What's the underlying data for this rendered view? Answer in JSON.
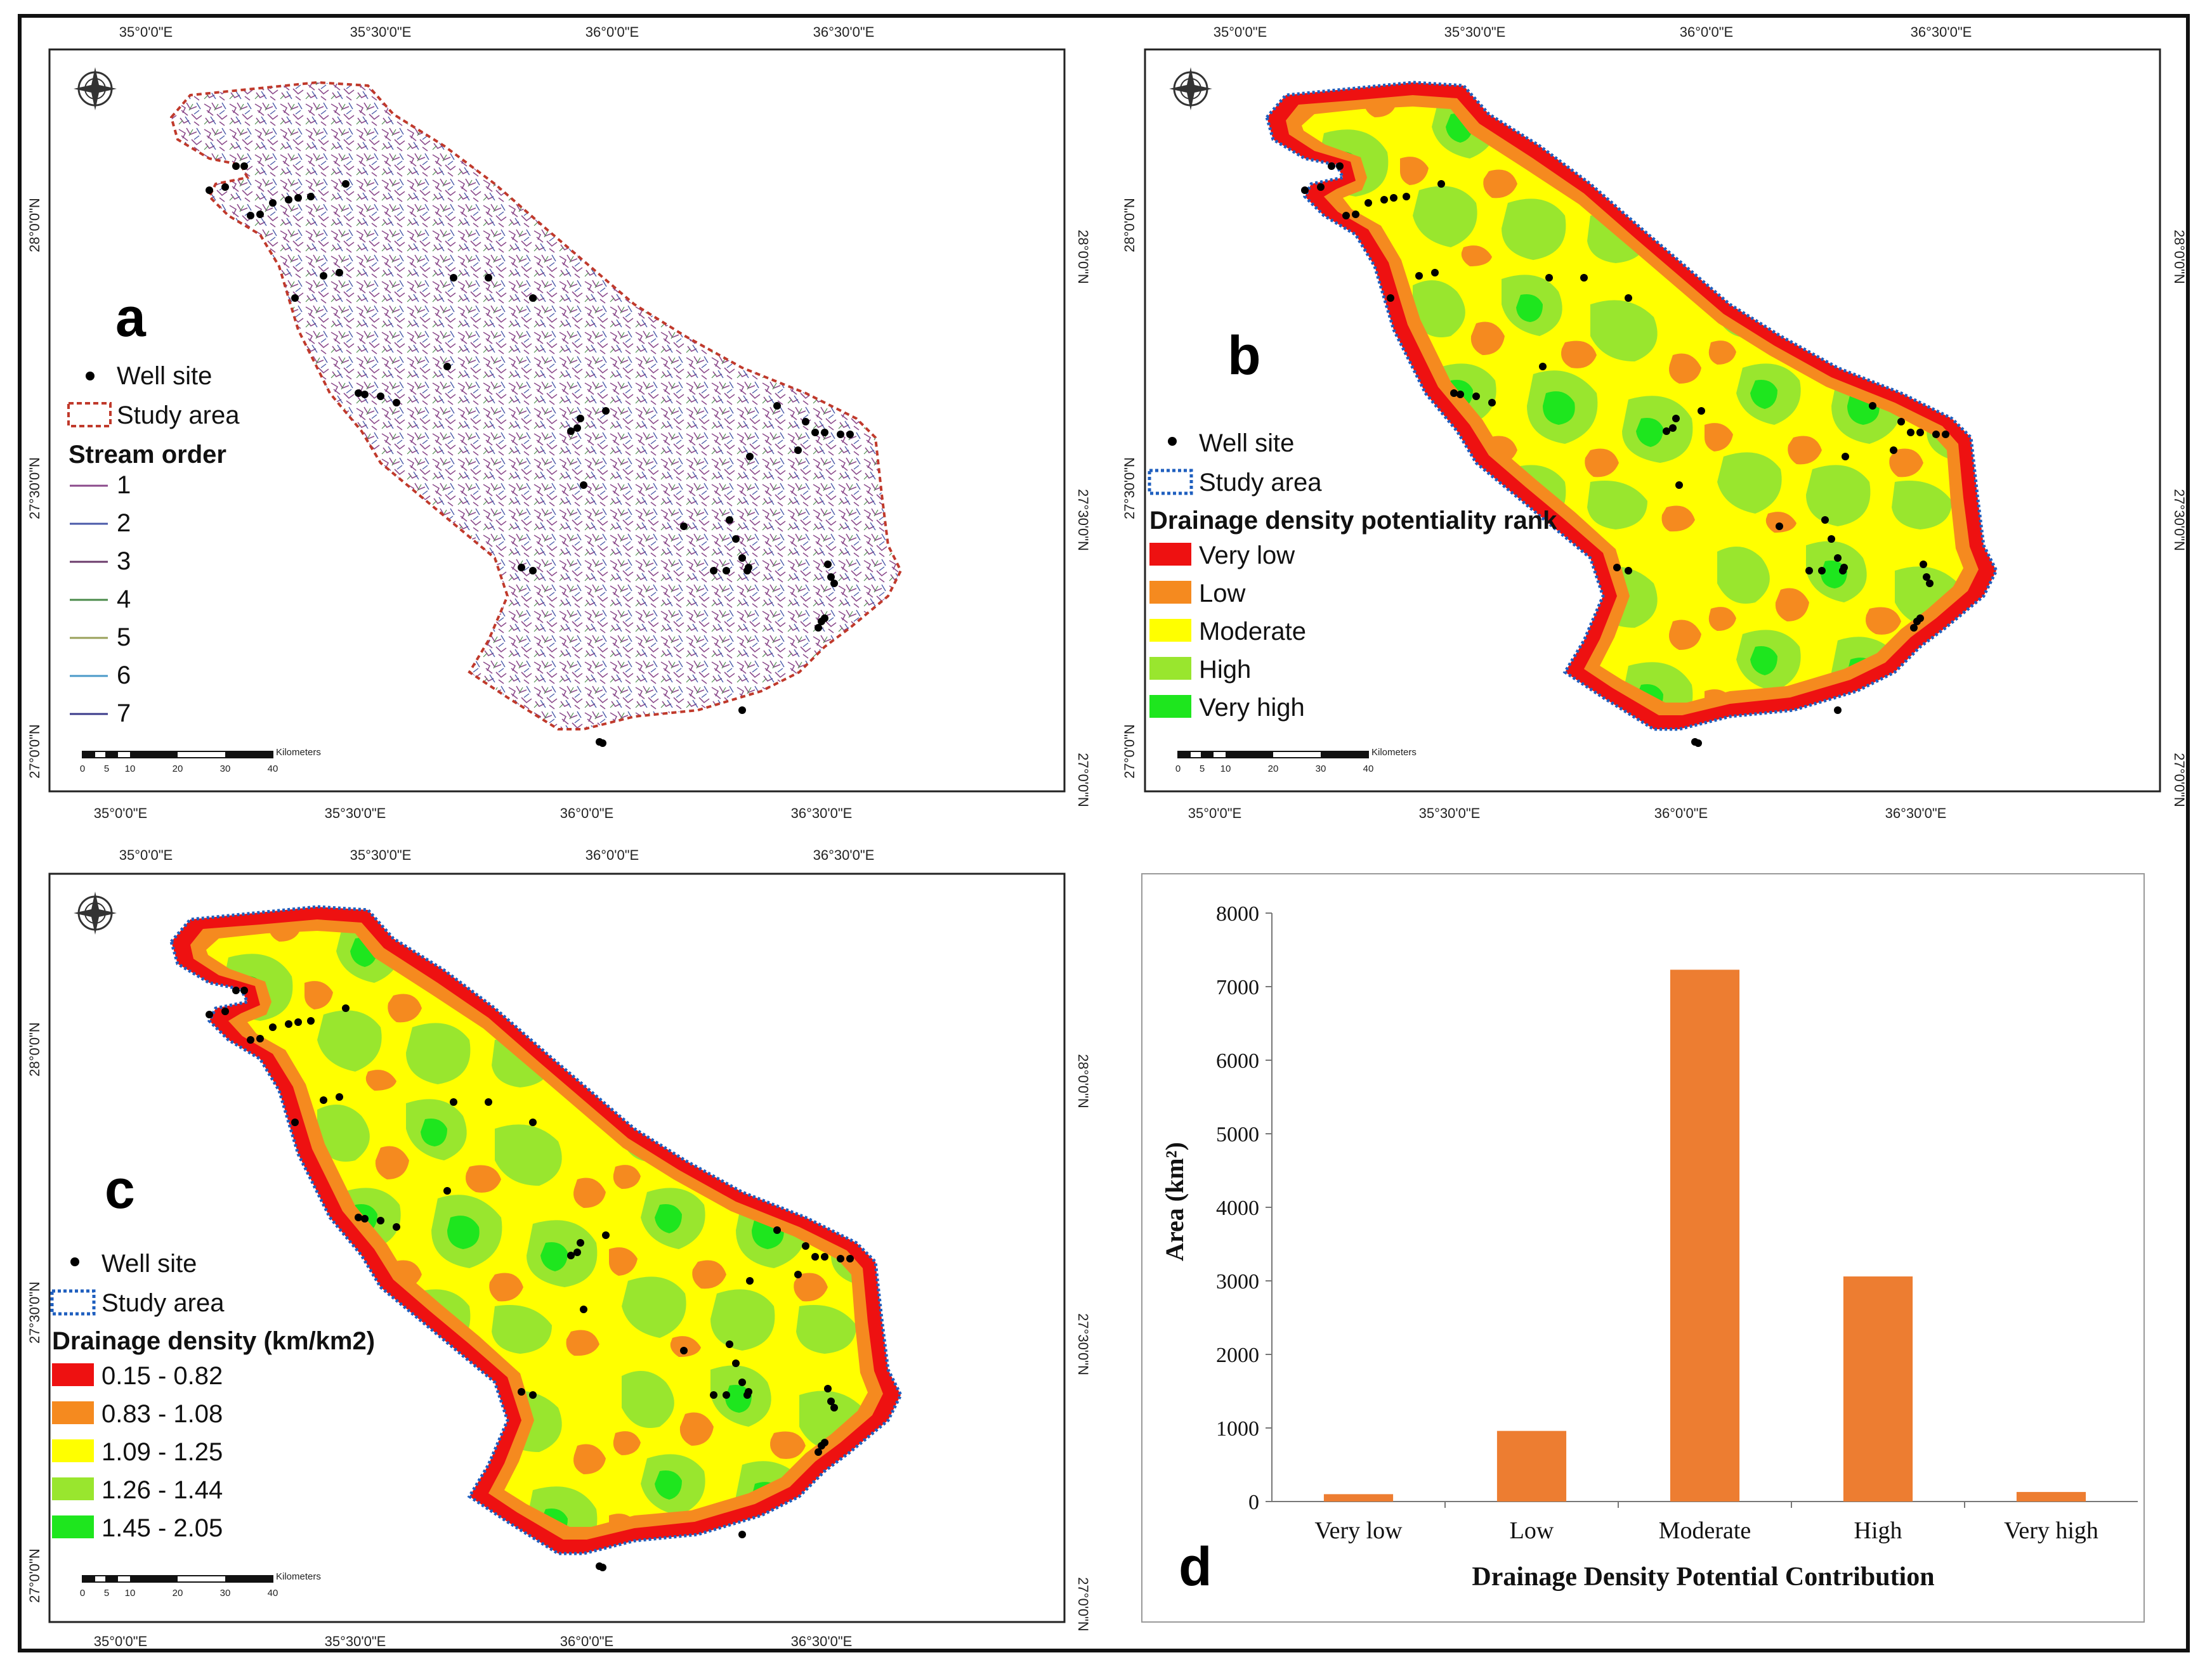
{
  "panels": {
    "a": {
      "letter": "a",
      "legend": {
        "well_site": "Well site",
        "study_area": "Study area",
        "title": "Stream order",
        "items": [
          "1",
          "2",
          "3",
          "4",
          "5",
          "6",
          "7"
        ]
      }
    },
    "b": {
      "letter": "b",
      "legend": {
        "well_site": "Well site",
        "study_area": "Study area",
        "title": "Drainage density potentiality rank",
        "items": [
          "Very low",
          "Low",
          "Moderate",
          "High",
          "Very high"
        ]
      }
    },
    "c": {
      "letter": "c",
      "legend": {
        "well_site": "Well site",
        "study_area": "Study area",
        "title": "Drainage density (km/km2)",
        "items": [
          "0.15 - 0.82",
          "0.83 - 1.08",
          "1.09 - 1.25",
          "1.26 - 1.44",
          "1.45 - 2.05"
        ]
      }
    },
    "d": {
      "letter": "d"
    }
  },
  "axes": {
    "lon": [
      "35°0'0\"E",
      "35°30'0\"E",
      "36°0'0\"E",
      "36°30'0\"E"
    ],
    "lat": [
      "28°0'0\"N",
      "27°30'0\"N",
      "27°0'0\"N"
    ]
  },
  "scale_bar": {
    "unit": "Kilometers",
    "ticks": [
      "0",
      "5",
      "10",
      "20",
      "30",
      "40"
    ]
  },
  "colors": {
    "very_low": "#ee1111",
    "low": "#f58a1f",
    "moderate": "#ffff00",
    "high": "#99e62e",
    "very_high": "#1ee61e",
    "bar": "#ed7d31",
    "study_area_a": "#c0392b",
    "study_area_bc": "#1f5fbf",
    "stream_colors": [
      "#8b4a8b",
      "#4a5aa8",
      "#6b3b6b",
      "#4a8a4a",
      "#9aa05a",
      "#4a9ac8",
      "#3a3a8a"
    ]
  },
  "chart_data": {
    "type": "bar",
    "categories": [
      "Very low",
      "Low",
      "Moderate",
      "High",
      "Very high"
    ],
    "values": [
      100,
      960,
      7230,
      3060,
      130
    ],
    "xlabel": "Drainage Density Potential  Contribution",
    "ylabel": "Area (km²)",
    "ylim": [
      0,
      8000
    ],
    "yticks": [
      "0",
      "1000",
      "2000",
      "3000",
      "4000",
      "5000",
      "6000",
      "7000",
      "8000"
    ]
  }
}
